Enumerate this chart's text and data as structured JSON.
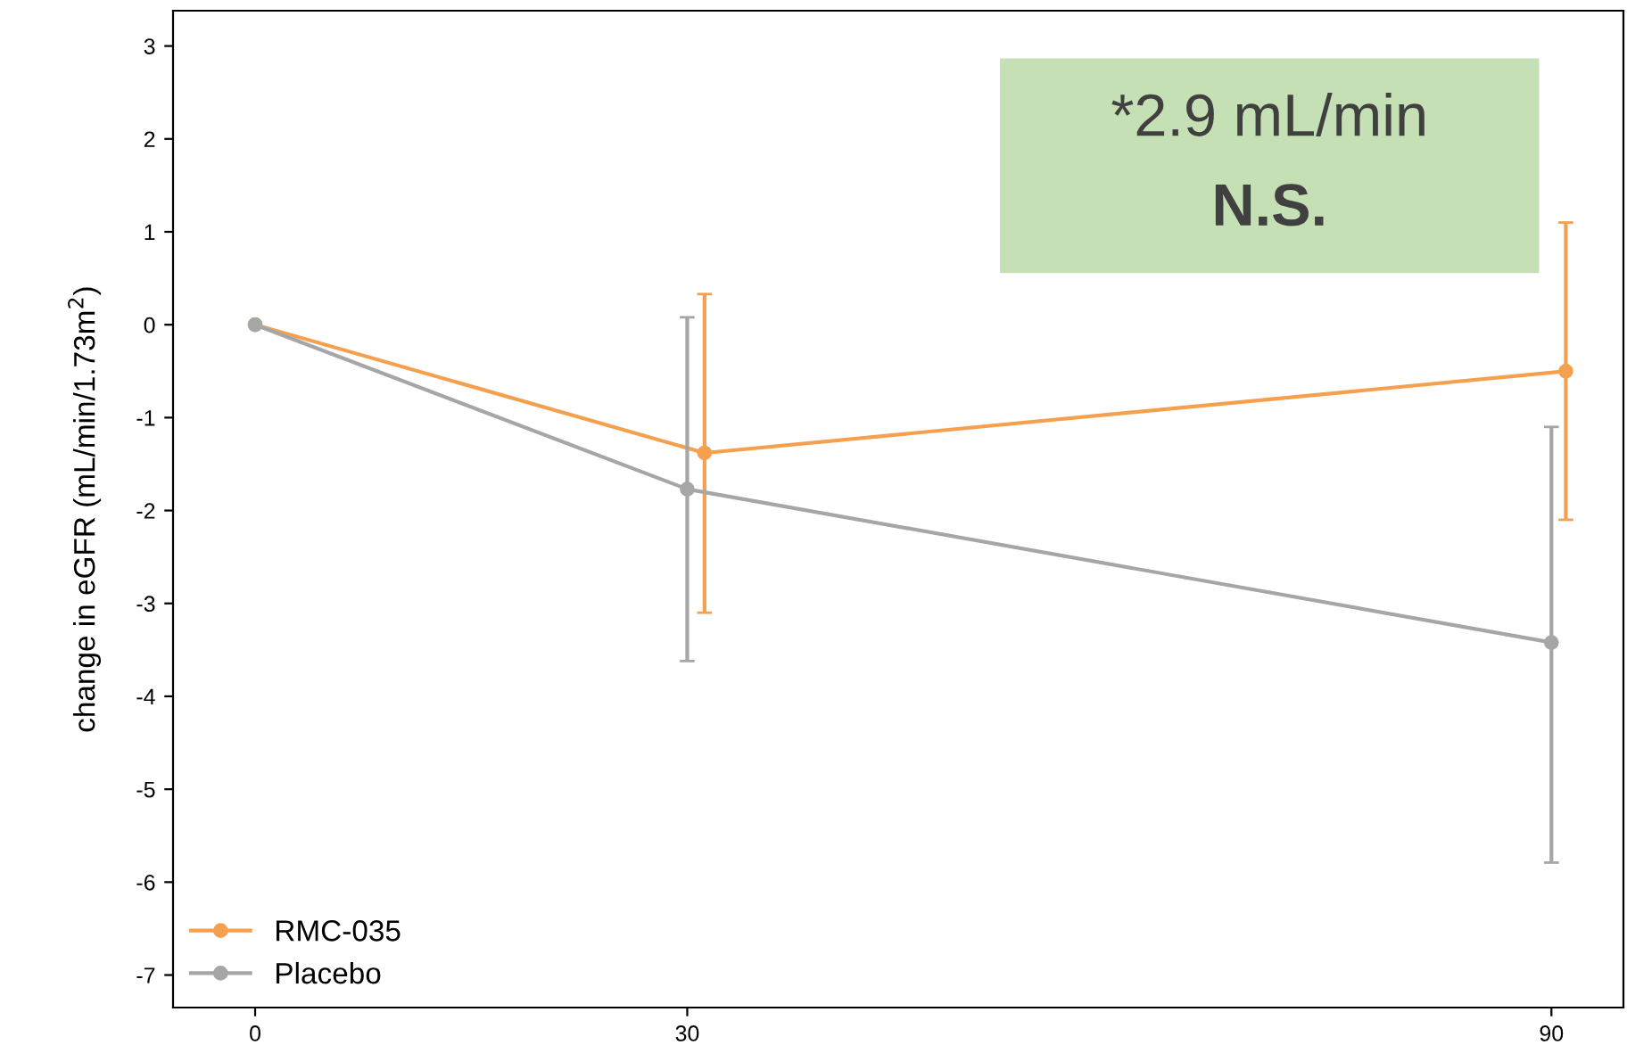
{
  "chart_data": {
    "type": "line",
    "ylabel": "change in eGFR (mL/min/1.73m$^{2}$)",
    "xlim": [
      -5.7,
      95
    ],
    "xticks": [
      0,
      30,
      90
    ],
    "ylim": [
      -7.35,
      3.38
    ],
    "yticks": [
      -7,
      -6,
      -5,
      -4,
      -3,
      -2,
      -1,
      0,
      1,
      2,
      3
    ],
    "series": [
      {
        "name": "RMC-035",
        "color": "#f5a04e",
        "x": [
          0,
          31.2,
          91
        ],
        "values": [
          0,
          -1.38,
          -0.5
        ],
        "errors": [
          null,
          [
            -3.1,
            0.33
          ],
          [
            -2.1,
            1.1
          ]
        ]
      },
      {
        "name": "Placebo",
        "color": "#a6a6a6",
        "x": [
          0,
          30,
          90
        ],
        "values": [
          0,
          -1.77,
          -3.42
        ],
        "errors": [
          null,
          [
            -3.62,
            0.08
          ],
          [
            -5.79,
            -1.1
          ]
        ]
      }
    ],
    "annotations": [
      "*2.9 mL/min",
      "N.S."
    ],
    "marker": "circle",
    "line_style": "solid",
    "legend": "bottom left",
    "grid": false
  }
}
